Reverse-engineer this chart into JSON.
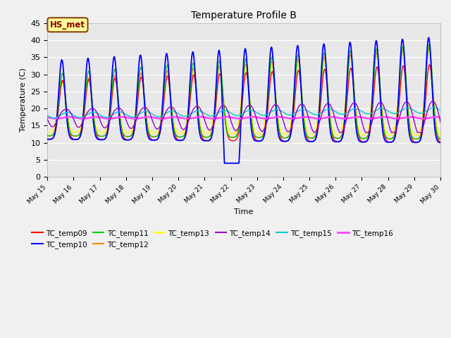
{
  "title": "Temperature Profile B",
  "xlabel": "Time",
  "ylabel": "Temperature (C)",
  "ylim": [
    0,
    45
  ],
  "annotation_text": "HS_met",
  "fig_bg": "#f0f0f0",
  "plot_bg": "#e8e8e8",
  "series_colors": {
    "TC_temp09": "#ff0000",
    "TC_temp10": "#0000ff",
    "TC_temp11": "#00cc00",
    "TC_temp12": "#ff8800",
    "TC_temp13": "#ffff00",
    "TC_temp14": "#9900cc",
    "TC_temp15": "#00cccc",
    "TC_temp16": "#ff44ff"
  },
  "tick_labels": [
    "May 15",
    "May 16",
    "May 17",
    "May 18",
    "May 19",
    "May 20",
    "May 21",
    "May 22",
    "May 23",
    "May 24",
    "May 25",
    "May 26",
    "May 27",
    "May 28",
    "May 29",
    "May 30"
  ],
  "tick_positions": [
    15,
    16,
    17,
    18,
    19,
    20,
    21,
    22,
    23,
    24,
    25,
    26,
    27,
    28,
    29,
    30
  ],
  "yticks": [
    0,
    5,
    10,
    15,
    20,
    25,
    30,
    35,
    40,
    45
  ]
}
